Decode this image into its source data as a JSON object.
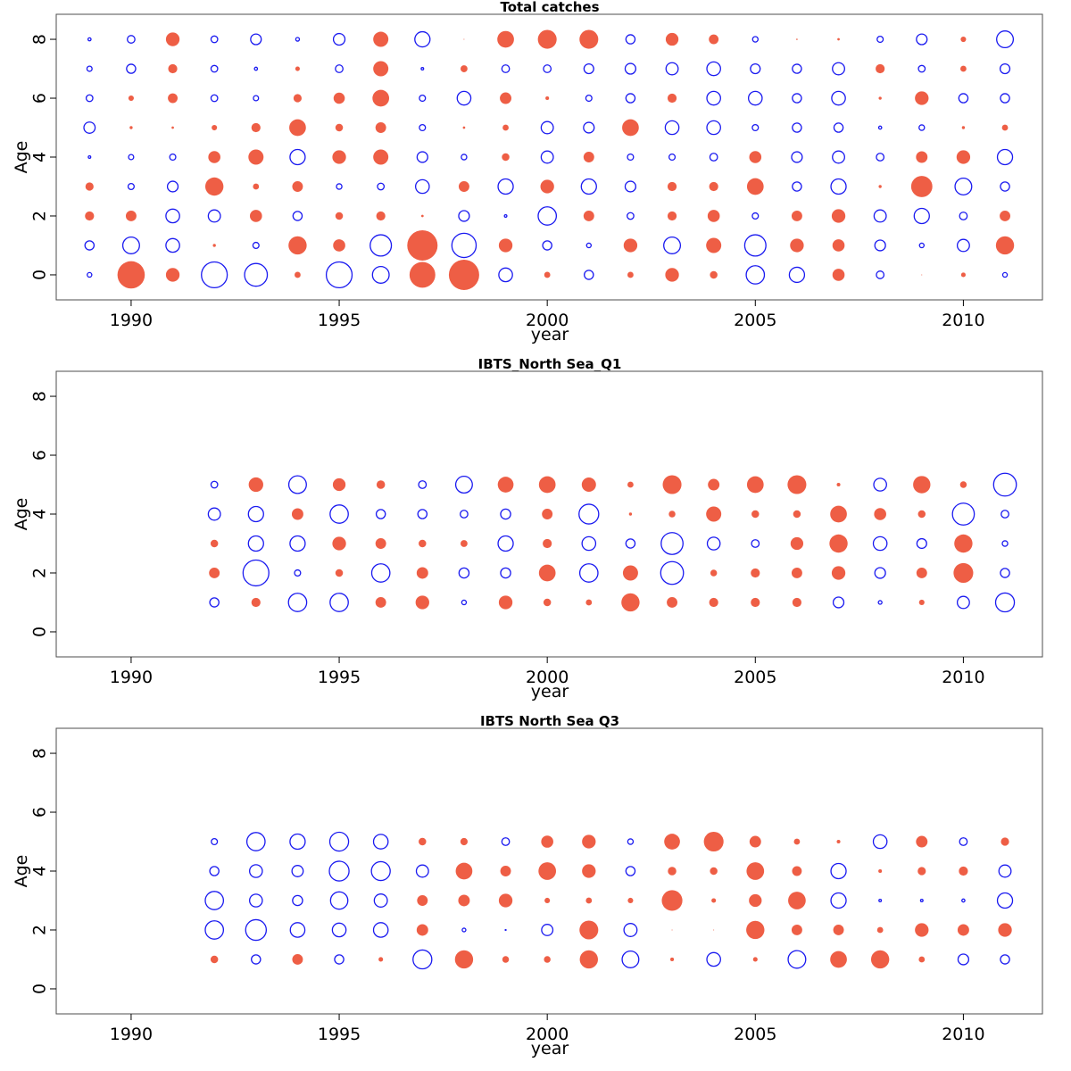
{
  "chart_data": [
    {
      "type": "scatter",
      "subtype": "bubble-residuals",
      "title": "Total catches",
      "xlabel": "year",
      "ylabel": "Age",
      "xticks": [
        1990,
        1995,
        2000,
        2005,
        2010
      ],
      "yticks": [
        0,
        2,
        4,
        6,
        8
      ],
      "xlim": [
        1988.2,
        2011.9
      ],
      "ylim": [
        -0.85,
        8.85
      ],
      "legend": "none",
      "encoding": "value sign: positive = filled red, negative = open blue; |value| scales bubble size",
      "years": [
        1989,
        1990,
        1991,
        1992,
        1993,
        1994,
        1995,
        1996,
        1997,
        1998,
        1999,
        2000,
        2001,
        2002,
        2003,
        2004,
        2005,
        2006,
        2007,
        2008,
        2009,
        2010,
        2011
      ],
      "ages": [
        0,
        1,
        2,
        3,
        4,
        5,
        6,
        7,
        8
      ],
      "values": [
        [
          -0.15,
          0.9,
          0.45,
          -0.85,
          -0.75,
          0.2,
          -0.85,
          -0.55,
          0.85,
          1.0,
          -0.45,
          0.2,
          -0.3,
          0.2,
          0.45,
          0.25,
          -0.6,
          -0.5,
          0.4,
          -0.25,
          0.03,
          0.15,
          -0.15
        ],
        [
          -0.3,
          -0.55,
          -0.45,
          0.1,
          -0.2,
          0.6,
          0.4,
          -0.7,
          1.0,
          -0.8,
          0.45,
          -0.3,
          -0.15,
          0.45,
          -0.55,
          0.5,
          -0.7,
          0.45,
          0.4,
          -0.35,
          -0.15,
          -0.4,
          0.6
        ],
        [
          0.3,
          0.35,
          -0.45,
          -0.4,
          0.4,
          -0.3,
          0.25,
          0.3,
          0.08,
          -0.35,
          -0.08,
          -0.6,
          0.35,
          -0.22,
          0.3,
          0.4,
          -0.2,
          0.35,
          0.45,
          -0.4,
          -0.5,
          -0.25,
          0.35
        ],
        [
          0.27,
          -0.2,
          -0.35,
          0.6,
          0.2,
          0.35,
          -0.18,
          -0.22,
          -0.45,
          0.35,
          -0.5,
          0.45,
          -0.5,
          -0.35,
          0.3,
          0.3,
          0.55,
          -0.3,
          -0.5,
          0.1,
          0.7,
          -0.55,
          -0.3
        ],
        [
          -0.08,
          -0.17,
          -0.2,
          0.4,
          0.5,
          -0.5,
          0.45,
          0.5,
          -0.35,
          -0.18,
          0.25,
          -0.4,
          0.35,
          -0.2,
          -0.2,
          -0.25,
          0.4,
          -0.35,
          -0.4,
          -0.25,
          0.38,
          0.45,
          -0.5
        ],
        [
          -0.37,
          0.1,
          0.08,
          0.18,
          0.3,
          0.55,
          0.25,
          0.35,
          -0.2,
          0.08,
          0.2,
          -0.4,
          -0.35,
          0.55,
          -0.45,
          -0.45,
          -0.2,
          -0.3,
          -0.3,
          -0.1,
          -0.18,
          0.1,
          0.2
        ],
        [
          -0.22,
          0.18,
          0.32,
          -0.22,
          -0.17,
          0.27,
          0.37,
          0.55,
          -0.2,
          -0.45,
          0.38,
          0.12,
          -0.2,
          -0.3,
          0.3,
          -0.45,
          -0.45,
          -0.3,
          -0.45,
          0.1,
          0.45,
          -0.3,
          -0.3
        ],
        [
          -0.17,
          -0.3,
          0.3,
          -0.22,
          -0.1,
          0.15,
          -0.25,
          0.5,
          -0.08,
          0.23,
          -0.25,
          -0.25,
          -0.32,
          -0.35,
          -0.4,
          -0.45,
          -0.32,
          -0.3,
          -0.4,
          0.3,
          -0.22,
          0.2,
          -0.32
        ],
        [
          -0.1,
          -0.25,
          0.45,
          -0.22,
          -0.35,
          -0.12,
          -0.38,
          0.5,
          -0.5,
          0.02,
          0.55,
          0.62,
          0.62,
          -0.3,
          0.42,
          0.32,
          -0.18,
          0.05,
          0.08,
          -0.2,
          -0.35,
          0.18,
          -0.55
        ]
      ]
    },
    {
      "type": "scatter",
      "subtype": "bubble-residuals",
      "title": "IBTS_North Sea_Q1",
      "xlabel": "year",
      "ylabel": "Age",
      "xticks": [
        1990,
        1995,
        2000,
        2005,
        2010
      ],
      "yticks": [
        0,
        2,
        4,
        6,
        8
      ],
      "xlim": [
        1988.2,
        2011.9
      ],
      "ylim": [
        -0.85,
        8.85
      ],
      "legend": "none",
      "encoding": "value sign: positive = filled red, negative = open blue; |value| scales bubble size",
      "years": [
        1992,
        1993,
        1994,
        1995,
        1996,
        1997,
        1998,
        1999,
        2000,
        2001,
        2002,
        2003,
        2004,
        2005,
        2006,
        2007,
        2008,
        2009,
        2010,
        2011
      ],
      "ages": [
        1,
        2,
        3,
        4,
        5
      ],
      "values": [
        [
          -0.3,
          0.3,
          -0.6,
          -0.6,
          0.35,
          0.45,
          -0.15,
          0.45,
          0.25,
          0.2,
          0.6,
          0.35,
          0.3,
          0.3,
          0.3,
          -0.35,
          -0.12,
          0.18,
          -0.4,
          -0.62
        ],
        [
          0.35,
          -0.85,
          -0.2,
          0.25,
          -0.6,
          0.38,
          -0.33,
          -0.33,
          0.55,
          -0.6,
          0.5,
          -0.75,
          0.22,
          0.3,
          0.35,
          0.45,
          -0.35,
          0.35,
          0.65,
          -0.3
        ],
        [
          0.25,
          -0.5,
          -0.5,
          0.45,
          0.35,
          0.25,
          0.23,
          -0.5,
          0.3,
          -0.45,
          -0.3,
          -0.72,
          -0.42,
          -0.25,
          0.42,
          0.6,
          -0.45,
          -0.32,
          0.6,
          -0.18
        ],
        [
          -0.4,
          -0.5,
          0.38,
          -0.6,
          -0.3,
          -0.3,
          -0.25,
          -0.33,
          0.35,
          -0.65,
          0.1,
          0.22,
          0.5,
          0.25,
          0.25,
          0.55,
          0.4,
          0.25,
          -0.72,
          -0.25
        ],
        [
          -0.22,
          0.48,
          -0.58,
          0.42,
          0.28,
          -0.25,
          -0.55,
          0.52,
          0.55,
          0.47,
          0.2,
          0.62,
          0.38,
          0.55,
          0.62,
          0.12,
          -0.42,
          0.57,
          0.22,
          -0.75
        ]
      ]
    },
    {
      "type": "scatter",
      "subtype": "bubble-residuals",
      "title": "IBTS North Sea Q3",
      "xlabel": "year",
      "ylabel": "Age",
      "xticks": [
        1990,
        1995,
        2000,
        2005,
        2010
      ],
      "yticks": [
        0,
        2,
        4,
        6,
        8
      ],
      "xlim": [
        1988.2,
        2011.9
      ],
      "ylim": [
        -0.85,
        8.85
      ],
      "legend": "none",
      "encoding": "value sign: positive = filled red, negative = open blue; |value| scales bubble size",
      "years": [
        1992,
        1993,
        1994,
        1995,
        1996,
        1997,
        1998,
        1999,
        2000,
        2001,
        2002,
        2003,
        2004,
        2005,
        2006,
        2007,
        2008,
        2009,
        2010,
        2011
      ],
      "ages": [
        1,
        2,
        3,
        4,
        5
      ],
      "values": [
        [
          0.25,
          -0.3,
          0.35,
          -0.3,
          0.15,
          -0.62,
          0.6,
          0.22,
          0.22,
          0.6,
          -0.55,
          0.12,
          -0.45,
          0.15,
          -0.58,
          0.55,
          0.6,
          0.2,
          -0.35,
          -0.3
        ],
        [
          -0.6,
          -0.68,
          -0.48,
          -0.45,
          -0.48,
          0.38,
          -0.12,
          -0.03,
          -0.37,
          0.62,
          -0.43,
          0.03,
          0.0,
          0.6,
          0.35,
          0.35,
          0.2,
          0.45,
          0.38,
          0.45
        ],
        [
          -0.6,
          -0.42,
          -0.33,
          -0.57,
          -0.43,
          0.35,
          0.38,
          0.45,
          0.18,
          0.2,
          0.18,
          0.68,
          0.15,
          0.42,
          0.58,
          -0.5,
          -0.08,
          -0.08,
          -0.1,
          -0.5
        ],
        [
          -0.3,
          -0.42,
          -0.37,
          -0.65,
          -0.62,
          -0.4,
          0.55,
          0.35,
          0.58,
          0.45,
          -0.3,
          0.28,
          0.25,
          0.58,
          0.32,
          -0.5,
          0.12,
          0.27,
          0.3,
          -0.4
        ],
        [
          -0.2,
          -0.6,
          -0.5,
          -0.62,
          -0.48,
          0.25,
          0.24,
          -0.25,
          0.4,
          0.45,
          -0.18,
          0.52,
          0.65,
          0.38,
          0.2,
          0.12,
          -0.45,
          0.38,
          -0.25,
          0.27
        ]
      ]
    }
  ],
  "colors": {
    "positive": "#EE5E45",
    "negative": "#1A1AF0",
    "axis": "#000000",
    "frame": "#4d4d4d"
  }
}
